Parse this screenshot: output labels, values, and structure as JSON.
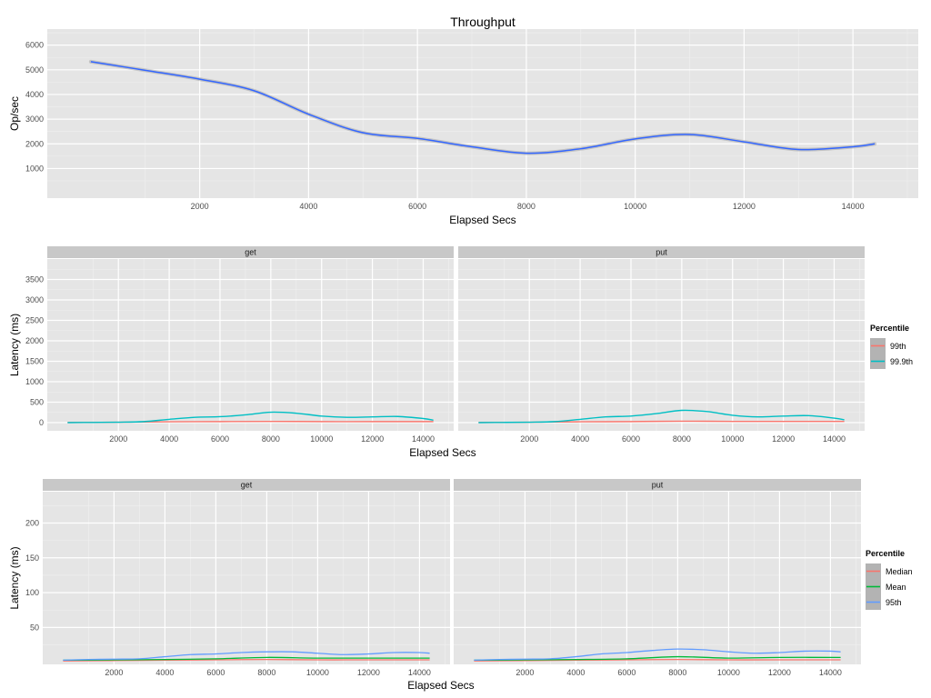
{
  "colors": {
    "panel_bg": "#e5e5e5",
    "grid_major": "#ffffff",
    "grid_minor": "#f0f0f0",
    "strip_bg": "#c8c8c8",
    "legend_key_bg": "#b3b3b3",
    "throughput_line": "#3366ff",
    "ci_band": "#999999",
    "p99": "#f8766d",
    "p999": "#00bfc4",
    "median": "#f8766d",
    "mean": "#00ba38",
    "p95": "#619cff"
  },
  "chart_data": [
    {
      "type": "line",
      "title": "Throughput",
      "xlabel": "Elapsed Secs",
      "ylabel": "Op/sec",
      "xlim": [
        -800,
        15200
      ],
      "ylim": [
        -200,
        6650
      ],
      "xticks": [
        2000,
        4000,
        6000,
        8000,
        10000,
        12000,
        14000
      ],
      "yticks": [
        1000,
        2000,
        3000,
        4000,
        5000,
        6000
      ],
      "grid": true,
      "series": [
        {
          "color_key": "throughput_line",
          "x": [
            0,
            1000,
            2000,
            3000,
            4000,
            5000,
            6000,
            7000,
            8000,
            9000,
            10000,
            11000,
            12000,
            13000,
            14000,
            14400
          ],
          "y": [
            5330,
            4980,
            4620,
            4150,
            3200,
            2450,
            2220,
            1880,
            1620,
            1800,
            2200,
            2380,
            2080,
            1770,
            1880,
            2000
          ]
        }
      ]
    },
    {
      "type": "line",
      "xlabel": "Elapsed Secs",
      "ylabel": "Latency (ms)",
      "xlim": [
        -800,
        15200
      ],
      "ylim": [
        -200,
        4000
      ],
      "xticks": [
        2000,
        4000,
        6000,
        8000,
        10000,
        12000,
        14000
      ],
      "yticks": [
        0,
        500,
        1000,
        1500,
        2000,
        2500,
        3000,
        3500
      ],
      "grid": true,
      "legend": {
        "title": "Percentile",
        "position": "right",
        "entries": [
          {
            "label": "99th",
            "color_key": "p99"
          },
          {
            "label": "99.9th",
            "color_key": "p999"
          }
        ]
      },
      "facets": [
        {
          "label": "get",
          "series": [
            {
              "name": "99th",
              "color_key": "p99",
              "x": [
                0,
                2000,
                4000,
                6000,
                8000,
                10000,
                12000,
                14400
              ],
              "y": [
                5,
                10,
                20,
                25,
                30,
                25,
                25,
                25
              ]
            },
            {
              "name": "99.9th",
              "color_key": "p999",
              "x": [
                0,
                1000,
                2000,
                3000,
                4000,
                5000,
                6000,
                7000,
                8000,
                9000,
                10000,
                11000,
                12000,
                13000,
                14000,
                14400
              ],
              "y": [
                0,
                5,
                10,
                25,
                80,
                130,
                145,
                190,
                255,
                230,
                160,
                130,
                140,
                150,
                100,
                60
              ]
            }
          ]
        },
        {
          "label": "put",
          "series": [
            {
              "name": "99th",
              "color_key": "p99",
              "x": [
                0,
                2000,
                4000,
                6000,
                8000,
                10000,
                12000,
                14400
              ],
              "y": [
                5,
                10,
                20,
                25,
                35,
                30,
                30,
                30
              ]
            },
            {
              "name": "99.9th",
              "color_key": "p999",
              "x": [
                0,
                1000,
                2000,
                3000,
                4000,
                5000,
                6000,
                7000,
                8000,
                9000,
                10000,
                11000,
                12000,
                13000,
                14000,
                14400
              ],
              "y": [
                0,
                5,
                10,
                25,
                80,
                140,
                160,
                220,
                300,
                270,
                180,
                140,
                160,
                170,
                110,
                70
              ]
            }
          ]
        }
      ]
    },
    {
      "type": "line",
      "xlabel": "Elapsed Secs",
      "ylabel": "Latency (ms)",
      "xlim": [
        -800,
        15200
      ],
      "ylim": [
        -3,
        245
      ],
      "xticks": [
        2000,
        4000,
        6000,
        8000,
        10000,
        12000,
        14000
      ],
      "yticks": [
        50,
        100,
        150,
        200
      ],
      "grid": true,
      "legend": {
        "title": "Percentile",
        "position": "right",
        "entries": [
          {
            "label": "Median",
            "color_key": "median"
          },
          {
            "label": "Mean",
            "color_key": "mean"
          },
          {
            "label": "95th",
            "color_key": "p95"
          }
        ]
      },
      "facets": [
        {
          "label": "get",
          "series": [
            {
              "name": "Median",
              "color_key": "median",
              "x": [
                0,
                2000,
                4000,
                6000,
                8000,
                10000,
                12000,
                14400
              ],
              "y": [
                2,
                2.5,
                3,
                3.5,
                4,
                3.5,
                3.5,
                3.5
              ]
            },
            {
              "name": "Mean",
              "color_key": "mean",
              "x": [
                0,
                2000,
                4000,
                6000,
                8000,
                10000,
                12000,
                14400
              ],
              "y": [
                3,
                3.5,
                4,
                5,
                7,
                6,
                6,
                6
              ]
            },
            {
              "name": "95th",
              "color_key": "p95",
              "x": [
                0,
                1000,
                2000,
                3000,
                4000,
                5000,
                6000,
                7000,
                8000,
                9000,
                10000,
                11000,
                12000,
                13000,
                14000,
                14400
              ],
              "y": [
                3,
                4,
                4.5,
                5,
                8,
                11,
                12,
                14,
                15,
                15,
                13,
                11,
                12,
                14,
                14,
                13
              ]
            }
          ]
        },
        {
          "label": "put",
          "series": [
            {
              "name": "Median",
              "color_key": "median",
              "x": [
                0,
                2000,
                4000,
                6000,
                8000,
                10000,
                12000,
                14400
              ],
              "y": [
                2,
                2.5,
                3,
                3.5,
                4,
                3.5,
                3.5,
                3.5
              ]
            },
            {
              "name": "Mean",
              "color_key": "mean",
              "x": [
                0,
                2000,
                4000,
                6000,
                8000,
                10000,
                12000,
                14400
              ],
              "y": [
                3,
                3.5,
                4,
                5,
                8,
                6,
                7,
                7
              ]
            },
            {
              "name": "95th",
              "color_key": "p95",
              "x": [
                0,
                1000,
                2000,
                3000,
                4000,
                5000,
                6000,
                7000,
                8000,
                9000,
                10000,
                11000,
                12000,
                13000,
                14000,
                14400
              ],
              "y": [
                3,
                4,
                4.5,
                5,
                8,
                12,
                14,
                17,
                19,
                18,
                15,
                13,
                14,
                16,
                16,
                15
              ]
            }
          ]
        }
      ]
    }
  ]
}
